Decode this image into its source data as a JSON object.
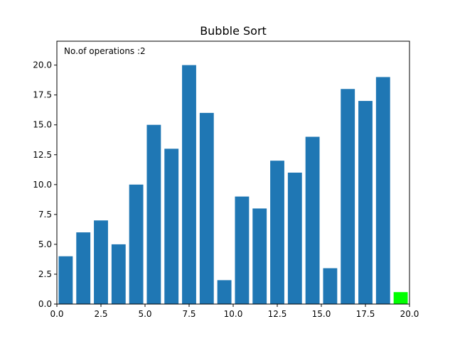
{
  "chart_data": {
    "type": "bar",
    "title": "Bubble Sort",
    "annotation": "No.of operations :2",
    "xlabel": "",
    "ylabel": "",
    "x": [
      0.5,
      1.5,
      2.5,
      3.5,
      4.5,
      5.5,
      6.5,
      7.5,
      8.5,
      9.5,
      10.5,
      11.5,
      12.5,
      13.5,
      14.5,
      15.5,
      16.5,
      17.5,
      18.5,
      19.5
    ],
    "values": [
      4,
      6,
      7,
      5,
      10,
      15,
      13,
      20,
      16,
      2,
      9,
      8,
      12,
      11,
      14,
      3,
      18,
      17,
      19,
      1
    ],
    "bar_width": 0.8,
    "highlight_index": 19,
    "xlim": [
      0,
      20
    ],
    "ylim": [
      0,
      22
    ],
    "xticks": [
      0,
      2.5,
      5,
      7.5,
      10,
      12.5,
      15,
      17.5,
      20
    ],
    "xtick_labels": [
      "0.0",
      "2.5",
      "5.0",
      "7.5",
      "10.0",
      "12.5",
      "15.0",
      "17.5",
      "20.0"
    ],
    "yticks": [
      0,
      2.5,
      5,
      7.5,
      10,
      12.5,
      15,
      17.5,
      20
    ],
    "ytick_labels": [
      "0.0",
      "2.5",
      "5.0",
      "7.5",
      "10.0",
      "12.5",
      "15.0",
      "17.5",
      "20.0"
    ],
    "grid": false,
    "bar_color": "#1f77b4",
    "highlight_color": "#00ff00"
  }
}
